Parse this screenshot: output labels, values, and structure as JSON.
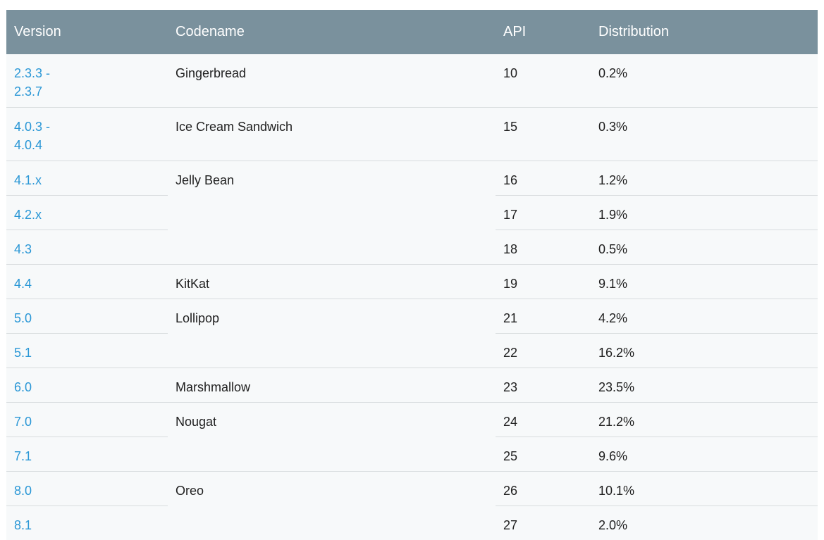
{
  "header": {
    "version": "Version",
    "codename": "Codename",
    "api": "API",
    "distribution": "Distribution"
  },
  "rows": [
    {
      "version_line1": "2.3.3 -",
      "version_line2": "2.3.7",
      "codename": "Gingerbread",
      "api": "10",
      "distribution": "0.2%"
    },
    {
      "version_line1": "4.0.3 -",
      "version_line2": "4.0.4",
      "codename": "Ice Cream Sandwich",
      "api": "15",
      "distribution": "0.3%"
    },
    {
      "version": "4.1.x",
      "codename": "Jelly Bean",
      "api": "16",
      "distribution": "1.2%"
    },
    {
      "version": "4.2.x",
      "api": "17",
      "distribution": "1.9%"
    },
    {
      "version": "4.3",
      "api": "18",
      "distribution": "0.5%"
    },
    {
      "version": "4.4",
      "codename": "KitKat",
      "api": "19",
      "distribution": "9.1%"
    },
    {
      "version": "5.0",
      "codename": "Lollipop",
      "api": "21",
      "distribution": "4.2%"
    },
    {
      "version": "5.1",
      "api": "22",
      "distribution": "16.2%"
    },
    {
      "version": "6.0",
      "codename": "Marshmallow",
      "api": "23",
      "distribution": "23.5%"
    },
    {
      "version": "7.0",
      "codename": "Nougat",
      "api": "24",
      "distribution": "21.2%"
    },
    {
      "version": "7.1",
      "api": "25",
      "distribution": "9.6%"
    },
    {
      "version": "8.0",
      "codename": "Oreo",
      "api": "26",
      "distribution": "10.1%"
    },
    {
      "version": "8.1",
      "api": "27",
      "distribution": "2.0%"
    }
  ],
  "colors": {
    "header_bg": "#7a919d",
    "link": "#2a97d6",
    "row_bg": "#f7f9fa",
    "divider": "#d8dcde"
  }
}
